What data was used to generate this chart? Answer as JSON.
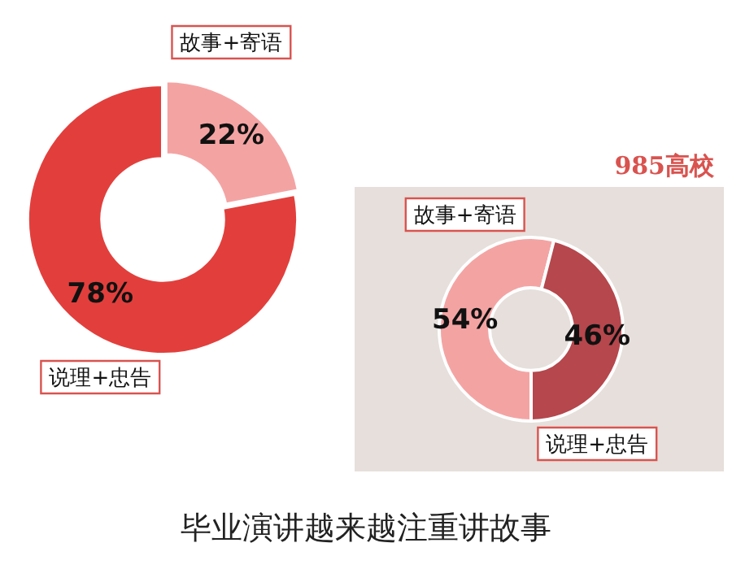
{
  "chart_data": [
    {
      "type": "donut",
      "title": "毕业演讲越来越注重讲故事",
      "categories": [
        "故事+寄语",
        "说理+忠告"
      ],
      "values": [
        22,
        78
      ],
      "value_labels": [
        "22%",
        "78%"
      ],
      "colors": [
        "#f4a3a3",
        "#e23f3c"
      ],
      "legend": false
    },
    {
      "type": "donut",
      "title": "985高校",
      "categories": [
        "故事+寄语",
        "说理+忠告"
      ],
      "values": [
        54,
        46
      ],
      "value_labels": [
        "54%",
        "46%"
      ],
      "colors": [
        "#f4a3a3",
        "#b5474d"
      ],
      "legend": false
    }
  ]
}
